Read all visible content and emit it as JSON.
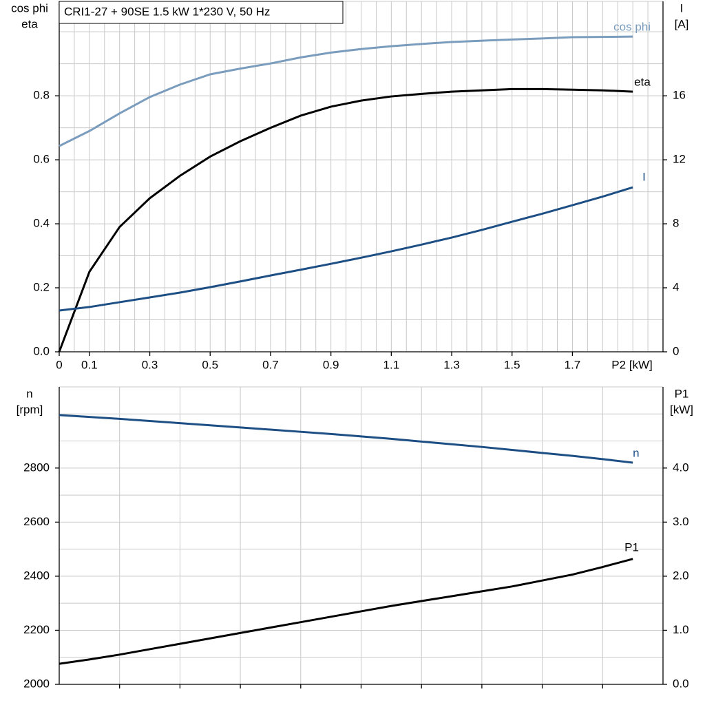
{
  "chart_data": [
    {
      "type": "line",
      "title": "CRI1-27 + 90SE   1.5 kW   1*230 V, 50 Hz",
      "xlabel": "P2 [kW]",
      "ylabel": [
        "cos phi",
        "eta"
      ],
      "y2label": [
        "I",
        "[A]"
      ],
      "x": [
        0,
        0.1,
        0.2,
        0.3,
        0.4,
        0.5,
        0.6,
        0.7,
        0.8,
        0.9,
        1.0,
        1.1,
        1.2,
        1.3,
        1.4,
        1.5,
        1.6,
        1.7,
        1.8,
        1.9
      ],
      "series": [
        {
          "name": "cos phi",
          "color": "#7a9cbd",
          "values": [
            0.643,
            0.69,
            0.745,
            0.796,
            0.835,
            0.867,
            0.885,
            0.901,
            0.92,
            0.935,
            0.946,
            0.955,
            0.962,
            0.968,
            0.972,
            0.976,
            0.979,
            0.983,
            0.984,
            0.985
          ]
        },
        {
          "name": "eta",
          "color": "#000000",
          "values": [
            0,
            0.25,
            0.39,
            0.48,
            0.55,
            0.61,
            0.658,
            0.7,
            0.738,
            0.766,
            0.785,
            0.798,
            0.806,
            0.813,
            0.817,
            0.821,
            0.821,
            0.819,
            0.817,
            0.813
          ]
        },
        {
          "name": "I",
          "color": "#1d4f85",
          "axis": "y2",
          "values": [
            2.58,
            2.8,
            3.1,
            3.4,
            3.7,
            4.04,
            4.4,
            4.77,
            5.13,
            5.5,
            5.88,
            6.28,
            6.7,
            7.14,
            7.62,
            8.13,
            8.63,
            9.16,
            9.7,
            10.28
          ]
        }
      ],
      "xlim": [
        0,
        2
      ],
      "xticks": [
        0,
        0.1,
        0.3,
        0.5,
        0.7,
        0.9,
        1.1,
        1.3,
        1.5,
        1.7
      ],
      "ylim": [
        0,
        1.095
      ],
      "yticks": [
        {
          "value": 0,
          "label": "0.0"
        },
        0.2,
        0.4,
        0.6,
        0.8
      ],
      "y2lim": [
        0,
        21.9
      ],
      "y2ticks": [
        0,
        4,
        8,
        12,
        16
      ],
      "grid": true,
      "minor_grid": {
        "x": 0.05,
        "y": 0.1
      }
    },
    {
      "type": "line",
      "ylabel": [
        "n",
        "[rpm]"
      ],
      "y2label": [
        "P1",
        "[kW]"
      ],
      "x": [
        0,
        0.1,
        0.2,
        0.3,
        0.4,
        0.5,
        0.6,
        0.7,
        0.8,
        0.9,
        1.0,
        1.1,
        1.2,
        1.3,
        1.4,
        1.5,
        1.6,
        1.7,
        1.8,
        1.9
      ],
      "series": [
        {
          "name": "n",
          "color": "#1d4f85",
          "values": [
            2996,
            2989,
            2982,
            2974,
            2966,
            2958,
            2950,
            2942,
            2934,
            2926,
            2917,
            2908,
            2898,
            2888,
            2878,
            2867,
            2856,
            2845,
            2833,
            2820
          ]
        },
        {
          "name": "P1",
          "color": "#000000",
          "axis": "y2",
          "values": [
            0.38,
            0.46,
            0.55,
            0.65,
            0.75,
            0.85,
            0.95,
            1.05,
            1.15,
            1.25,
            1.35,
            1.45,
            1.54,
            1.63,
            1.72,
            1.81,
            1.92,
            2.03,
            2.17,
            2.32
          ]
        }
      ],
      "xlim": [
        0,
        2
      ],
      "ylim": [
        2000,
        3100
      ],
      "yticks": [
        2000,
        2200,
        2400,
        2600,
        2800
      ],
      "y2lim": [
        0,
        5.5
      ],
      "y2ticks": [
        {
          "value": 0,
          "label": "0.0"
        },
        {
          "value": 1,
          "label": "1.0"
        },
        {
          "value": 2,
          "label": "2.0"
        },
        {
          "value": 3,
          "label": "3.0"
        },
        {
          "value": 4,
          "label": "4.0"
        }
      ],
      "grid": true,
      "minor_grid": {
        "x": 0.2,
        "y": 100
      }
    }
  ]
}
